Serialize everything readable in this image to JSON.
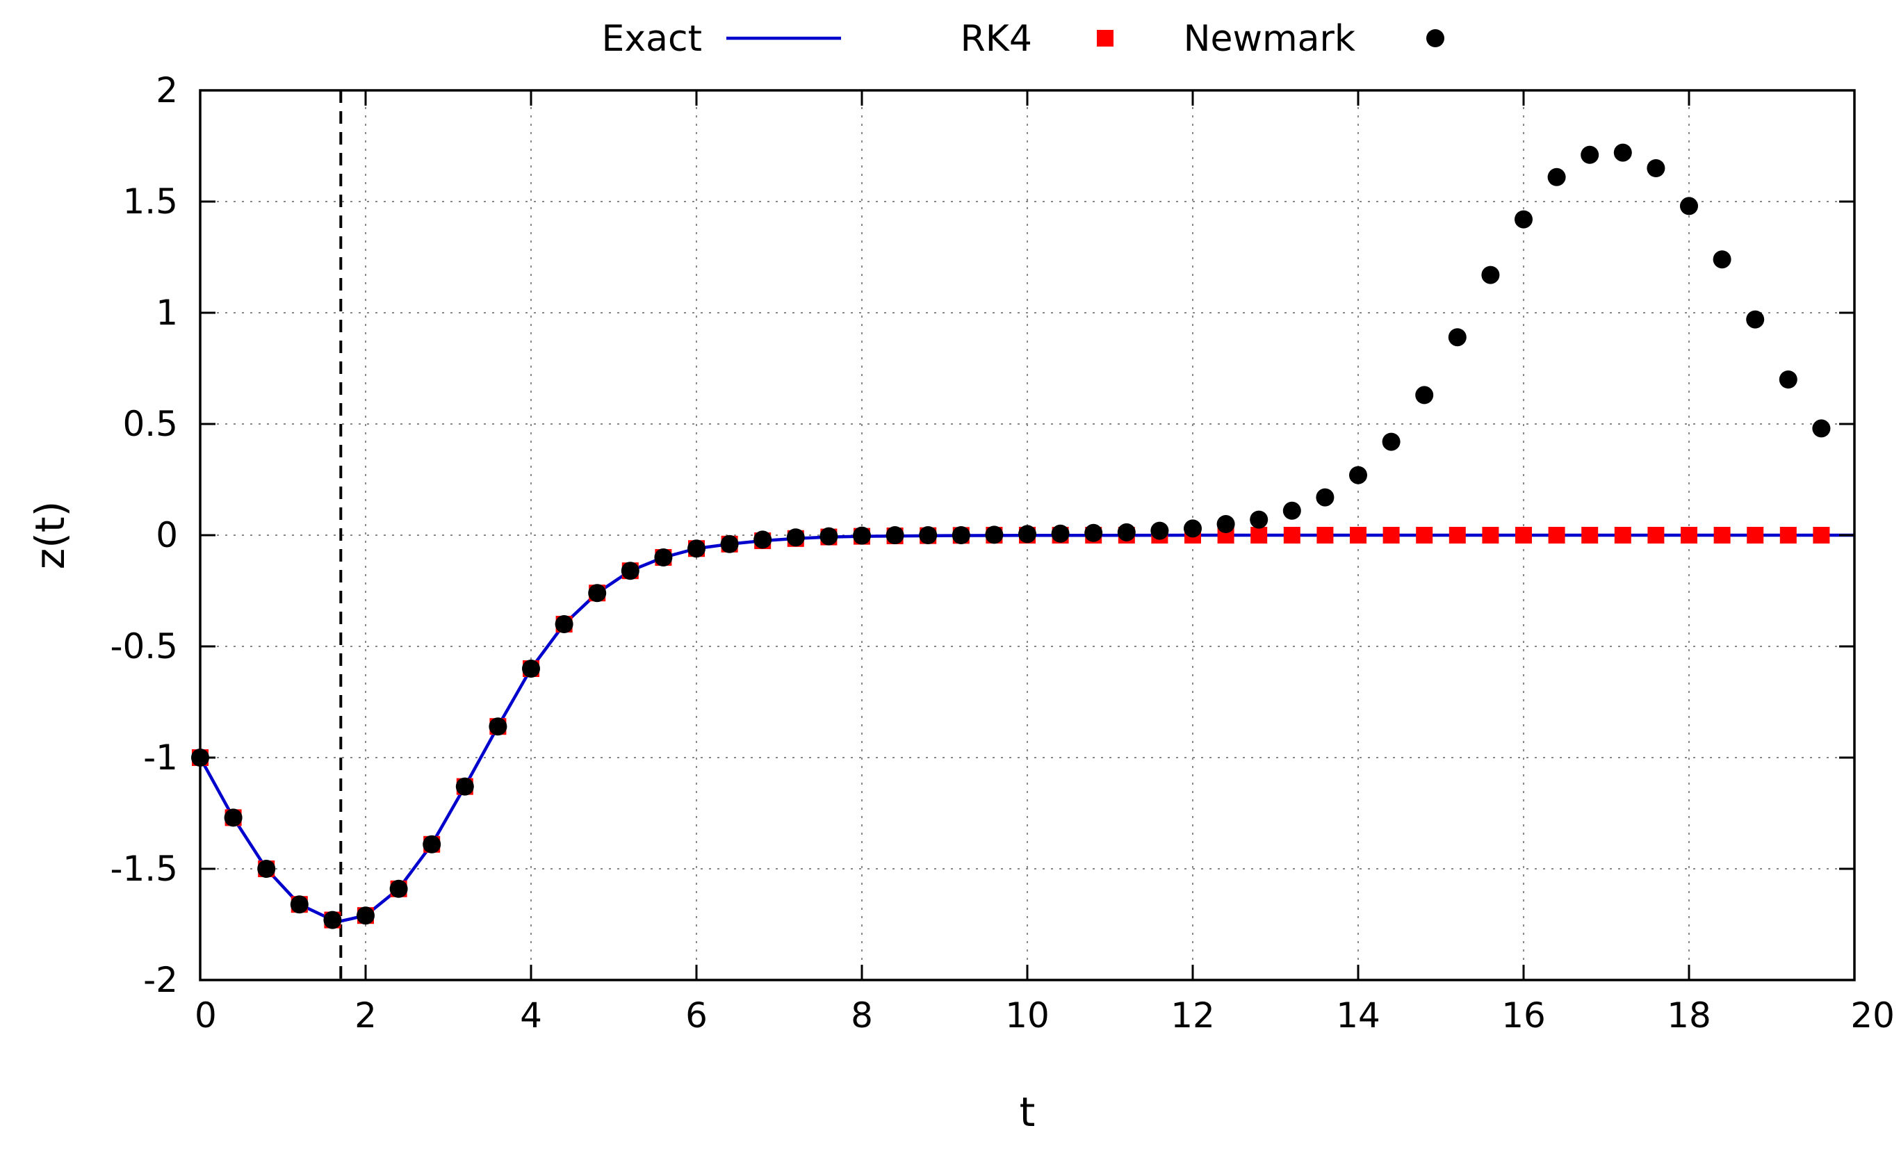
{
  "chart_data": {
    "type": "line",
    "title": "",
    "xlabel": "t",
    "ylabel": "z(t)",
    "xlim": [
      0,
      20
    ],
    "ylim": [
      -2,
      2
    ],
    "xticks": [
      "0",
      "2",
      "4",
      "6",
      "8",
      "10",
      "12",
      "14",
      "16",
      "18",
      "20"
    ],
    "yticks": [
      "-2",
      "-1.5",
      "-1",
      "-0.5",
      "0",
      "0.5",
      "1",
      "1.5",
      "2"
    ],
    "grid": true,
    "legend": "top, horizontal, outside plot",
    "reference_line": {
      "x": 1.7,
      "style": "dashed",
      "color": "#000000"
    },
    "series": [
      {
        "name": "Exact",
        "style": "line",
        "color": "#0000cc",
        "x": [
          0,
          0.4,
          0.8,
          1.2,
          1.6,
          1.7,
          2.0,
          2.4,
          2.8,
          3.2,
          3.6,
          4.0,
          4.4,
          4.8,
          5.2,
          5.6,
          6.0,
          6.4,
          6.8,
          7.2,
          7.6,
          8.0,
          9.0,
          10,
          12,
          14,
          16,
          18,
          20
        ],
        "y": [
          -1.0,
          -1.27,
          -1.5,
          -1.66,
          -1.73,
          -1.735,
          -1.71,
          -1.59,
          -1.39,
          -1.13,
          -0.86,
          -0.6,
          -0.4,
          -0.26,
          -0.16,
          -0.1,
          -0.06,
          -0.04,
          -0.025,
          -0.015,
          -0.008,
          -0.005,
          -0.002,
          -0.001,
          0,
          0,
          0,
          0,
          0
        ]
      },
      {
        "name": "RK4",
        "style": "square",
        "color": "#ff0000",
        "x": [
          0,
          0.4,
          0.8,
          1.2,
          1.6,
          2.0,
          2.4,
          2.8,
          3.2,
          3.6,
          4.0,
          4.4,
          4.8,
          5.2,
          5.6,
          6.0,
          6.4,
          6.8,
          7.2,
          7.6,
          8.0,
          8.4,
          8.8,
          9.2,
          9.6,
          10.0,
          10.4,
          10.8,
          11.2,
          11.6,
          12.0,
          12.4,
          12.8,
          13.2,
          13.6,
          14.0,
          14.4,
          14.8,
          15.2,
          15.6,
          16.0,
          16.4,
          16.8,
          17.2,
          17.6,
          18.0,
          18.4,
          18.8,
          19.2,
          19.6
        ],
        "y": [
          -1.0,
          -1.27,
          -1.5,
          -1.66,
          -1.73,
          -1.71,
          -1.59,
          -1.39,
          -1.13,
          -0.86,
          -0.6,
          -0.4,
          -0.26,
          -0.16,
          -0.1,
          -0.06,
          -0.04,
          -0.025,
          -0.015,
          -0.008,
          -0.005,
          -0.003,
          -0.002,
          -0.001,
          0,
          0,
          0,
          0,
          0,
          0,
          0,
          0,
          0,
          0,
          0,
          0,
          0,
          0,
          0,
          0,
          0,
          0,
          0,
          0,
          0,
          0,
          0,
          0,
          0,
          0
        ]
      },
      {
        "name": "Newmark",
        "style": "circle",
        "color": "#000000",
        "x": [
          0,
          0.4,
          0.8,
          1.2,
          1.6,
          2.0,
          2.4,
          2.8,
          3.2,
          3.6,
          4.0,
          4.4,
          4.8,
          5.2,
          5.6,
          6.0,
          6.4,
          6.8,
          7.2,
          7.6,
          8.0,
          8.4,
          8.8,
          9.2,
          9.6,
          10.0,
          10.4,
          10.8,
          11.2,
          11.6,
          12.0,
          12.4,
          12.8,
          13.2,
          13.6,
          14.0,
          14.4,
          14.8,
          15.2,
          15.6,
          16.0,
          16.4,
          16.8,
          17.2,
          17.6,
          18.0,
          18.4,
          18.8,
          19.2,
          19.6
        ],
        "y": [
          -1.0,
          -1.27,
          -1.5,
          -1.66,
          -1.73,
          -1.71,
          -1.59,
          -1.39,
          -1.13,
          -0.86,
          -0.6,
          -0.4,
          -0.26,
          -0.16,
          -0.1,
          -0.06,
          -0.04,
          -0.02,
          -0.01,
          -0.005,
          -0.002,
          0,
          0,
          0,
          0.002,
          0.005,
          0.007,
          0.01,
          0.013,
          0.02,
          0.03,
          0.05,
          0.07,
          0.11,
          0.17,
          0.27,
          0.42,
          0.63,
          0.89,
          1.17,
          1.42,
          1.61,
          1.71,
          1.72,
          1.65,
          1.48,
          1.24,
          0.97,
          0.7,
          0.48
        ]
      }
    ]
  }
}
